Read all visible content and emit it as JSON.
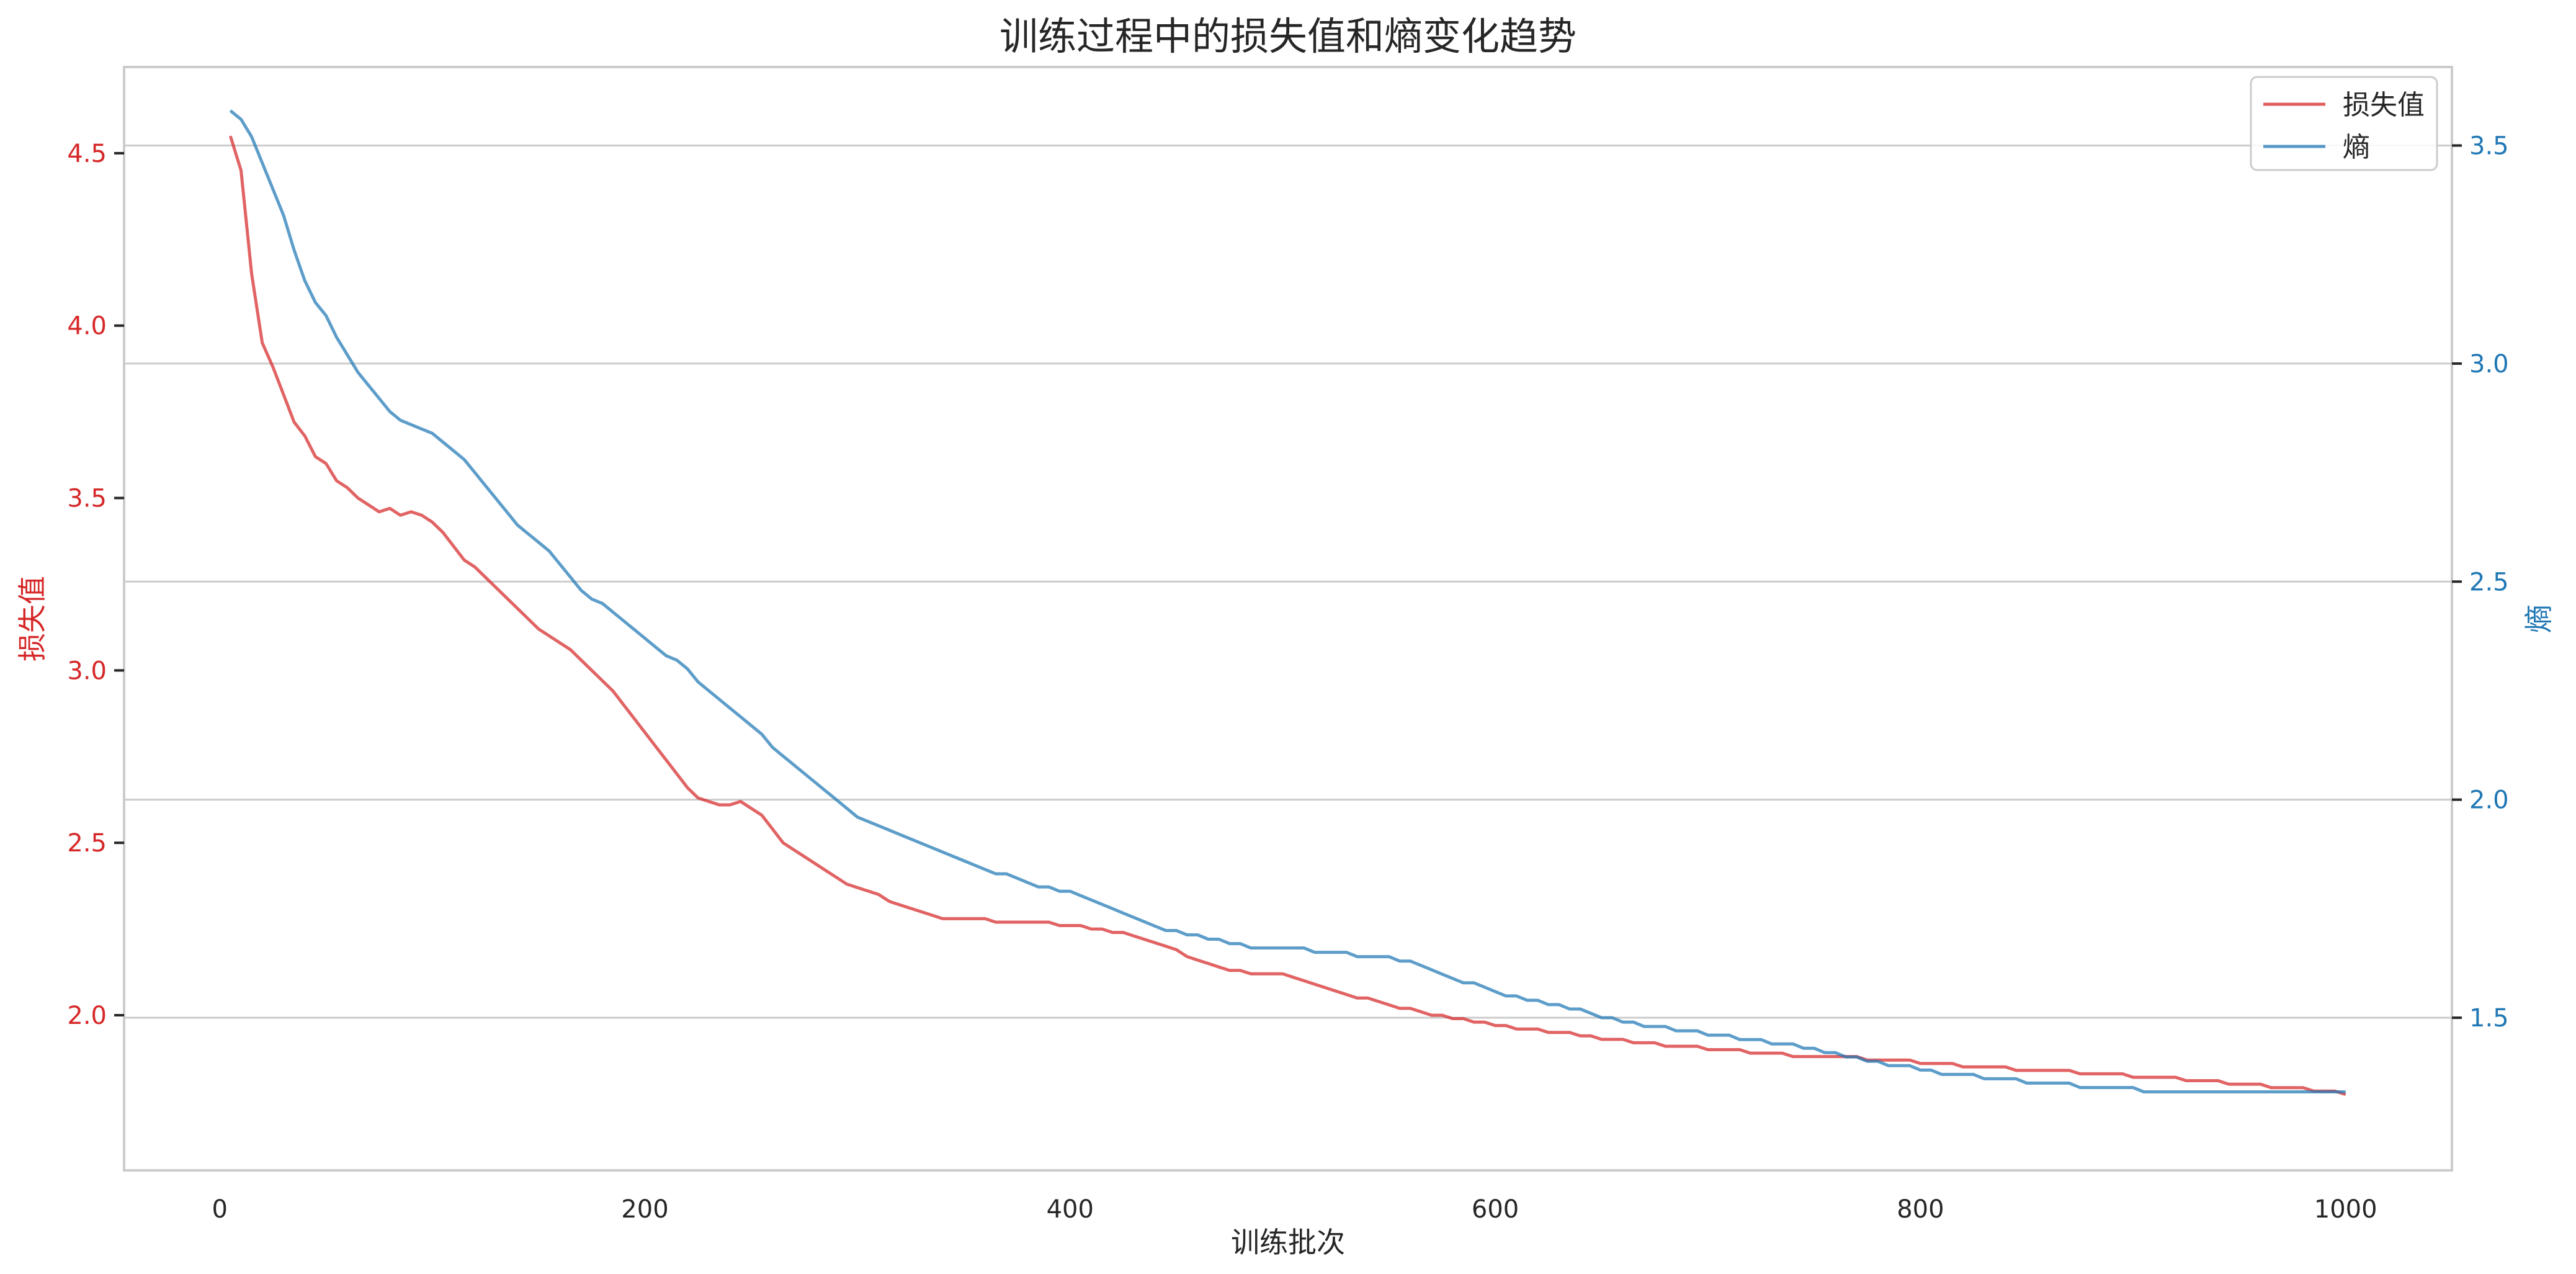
{
  "chart_data": {
    "type": "line",
    "title": "训练过程中的损失值和熵变化趋势",
    "xlabel": "训练批次",
    "ylabel": "损失值",
    "y2label": "熵",
    "xlim": [
      -45,
      1050
    ],
    "ylim": [
      1.55,
      4.75
    ],
    "y2lim": [
      1.15,
      3.68
    ],
    "x_ticks": [
      0,
      200,
      400,
      600,
      800,
      1000
    ],
    "y_ticks": [
      2.0,
      2.5,
      3.0,
      3.5,
      4.0,
      4.5
    ],
    "y_tick_labels": [
      "2.0",
      "2.5",
      "3.0",
      "3.5",
      "4.0",
      "4.5"
    ],
    "y2_ticks": [
      1.5,
      2.0,
      2.5,
      3.0,
      3.5
    ],
    "y2_tick_labels": [
      "1.5",
      "2.0",
      "2.5",
      "3.0",
      "3.5"
    ],
    "grid": "horizontal (right axis)",
    "legend": "top-right",
    "x_start": 5,
    "x_step": 5,
    "series": [
      {
        "name": "损失值",
        "axis": "left",
        "color": "#d62728",
        "values": [
          4.55,
          4.45,
          4.15,
          3.95,
          3.88,
          3.8,
          3.72,
          3.68,
          3.62,
          3.6,
          3.55,
          3.53,
          3.5,
          3.48,
          3.46,
          3.47,
          3.45,
          3.46,
          3.45,
          3.43,
          3.4,
          3.36,
          3.32,
          3.3,
          3.27,
          3.24,
          3.21,
          3.18,
          3.15,
          3.12,
          3.1,
          3.08,
          3.06,
          3.03,
          3.0,
          2.97,
          2.94,
          2.9,
          2.86,
          2.82,
          2.78,
          2.74,
          2.7,
          2.66,
          2.63,
          2.62,
          2.61,
          2.61,
          2.62,
          2.6,
          2.58,
          2.54,
          2.5,
          2.48,
          2.46,
          2.44,
          2.42,
          2.4,
          2.38,
          2.37,
          2.36,
          2.35,
          2.33,
          2.32,
          2.31,
          2.3,
          2.29,
          2.28,
          2.28,
          2.28,
          2.28,
          2.28,
          2.27,
          2.27,
          2.27,
          2.27,
          2.27,
          2.27,
          2.26,
          2.26,
          2.26,
          2.25,
          2.25,
          2.24,
          2.24,
          2.23,
          2.22,
          2.21,
          2.2,
          2.19,
          2.17,
          2.16,
          2.15,
          2.14,
          2.13,
          2.13,
          2.12,
          2.12,
          2.12,
          2.12,
          2.11,
          2.1,
          2.09,
          2.08,
          2.07,
          2.06,
          2.05,
          2.05,
          2.04,
          2.03,
          2.02,
          2.02,
          2.01,
          2.0,
          2.0,
          1.99,
          1.99,
          1.98,
          1.98,
          1.97,
          1.97,
          1.96,
          1.96,
          1.96,
          1.95,
          1.95,
          1.95,
          1.94,
          1.94,
          1.93,
          1.93,
          1.93,
          1.92,
          1.92,
          1.92,
          1.91,
          1.91,
          1.91,
          1.91,
          1.9,
          1.9,
          1.9,
          1.9,
          1.89,
          1.89,
          1.89,
          1.89,
          1.88,
          1.88,
          1.88,
          1.88,
          1.88,
          1.88,
          1.88,
          1.87,
          1.87,
          1.87,
          1.87,
          1.87,
          1.86,
          1.86,
          1.86,
          1.86,
          1.85,
          1.85,
          1.85,
          1.85,
          1.85,
          1.84,
          1.84,
          1.84,
          1.84,
          1.84,
          1.84,
          1.83,
          1.83,
          1.83,
          1.83,
          1.83,
          1.82,
          1.82,
          1.82,
          1.82,
          1.82,
          1.81,
          1.81,
          1.81,
          1.81,
          1.8,
          1.8,
          1.8,
          1.8,
          1.79,
          1.79,
          1.79,
          1.79,
          1.78,
          1.78,
          1.78,
          1.77
        ]
      },
      {
        "name": "熵",
        "axis": "right",
        "color": "#1f77b4",
        "values": [
          3.58,
          3.56,
          3.52,
          3.46,
          3.4,
          3.34,
          3.26,
          3.19,
          3.14,
          3.11,
          3.06,
          3.02,
          2.98,
          2.95,
          2.92,
          2.89,
          2.87,
          2.86,
          2.85,
          2.84,
          2.82,
          2.8,
          2.78,
          2.75,
          2.72,
          2.69,
          2.66,
          2.63,
          2.61,
          2.59,
          2.57,
          2.54,
          2.51,
          2.48,
          2.46,
          2.45,
          2.43,
          2.41,
          2.39,
          2.37,
          2.35,
          2.33,
          2.32,
          2.3,
          2.27,
          2.25,
          2.23,
          2.21,
          2.19,
          2.17,
          2.15,
          2.12,
          2.1,
          2.08,
          2.06,
          2.04,
          2.02,
          2.0,
          1.98,
          1.96,
          1.95,
          1.94,
          1.93,
          1.92,
          1.91,
          1.9,
          1.89,
          1.88,
          1.87,
          1.86,
          1.85,
          1.84,
          1.83,
          1.83,
          1.82,
          1.81,
          1.8,
          1.8,
          1.79,
          1.79,
          1.78,
          1.77,
          1.76,
          1.75,
          1.74,
          1.73,
          1.72,
          1.71,
          1.7,
          1.7,
          1.69,
          1.69,
          1.68,
          1.68,
          1.67,
          1.67,
          1.66,
          1.66,
          1.66,
          1.66,
          1.66,
          1.66,
          1.65,
          1.65,
          1.65,
          1.65,
          1.64,
          1.64,
          1.64,
          1.64,
          1.63,
          1.63,
          1.62,
          1.61,
          1.6,
          1.59,
          1.58,
          1.58,
          1.57,
          1.56,
          1.55,
          1.55,
          1.54,
          1.54,
          1.53,
          1.53,
          1.52,
          1.52,
          1.51,
          1.5,
          1.5,
          1.49,
          1.49,
          1.48,
          1.48,
          1.48,
          1.47,
          1.47,
          1.47,
          1.46,
          1.46,
          1.46,
          1.45,
          1.45,
          1.45,
          1.44,
          1.44,
          1.44,
          1.43,
          1.43,
          1.42,
          1.42,
          1.41,
          1.41,
          1.4,
          1.4,
          1.39,
          1.39,
          1.39,
          1.38,
          1.38,
          1.37,
          1.37,
          1.37,
          1.37,
          1.36,
          1.36,
          1.36,
          1.36,
          1.35,
          1.35,
          1.35,
          1.35,
          1.35,
          1.34,
          1.34,
          1.34,
          1.34,
          1.34,
          1.34,
          1.33,
          1.33,
          1.33,
          1.33,
          1.33,
          1.33,
          1.33,
          1.33,
          1.33,
          1.33,
          1.33,
          1.33,
          1.33,
          1.33,
          1.33,
          1.33,
          1.33,
          1.33,
          1.33,
          1.33
        ]
      }
    ]
  }
}
